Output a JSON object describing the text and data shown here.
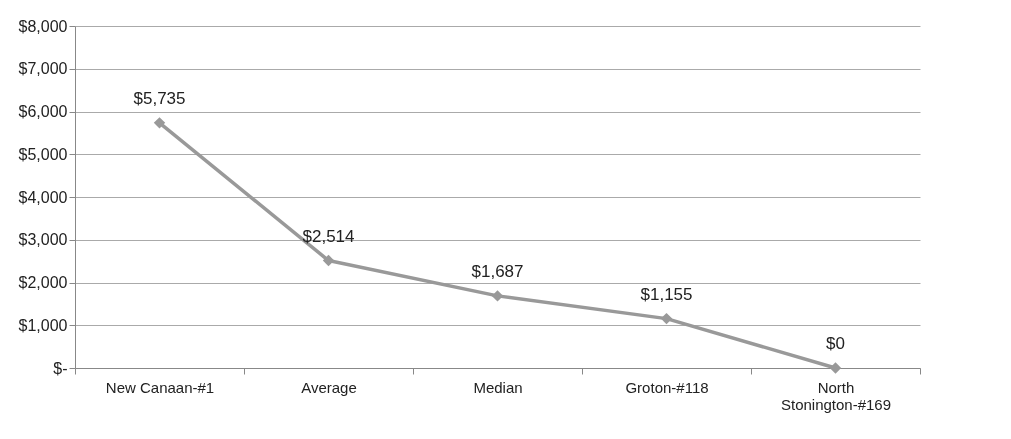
{
  "chart_data": {
    "type": "line",
    "categories": [
      "New Canaan-#1",
      "Average",
      "Median",
      "Groton-#118",
      "North Stonington-#169"
    ],
    "values": [
      5735,
      2514,
      1687,
      1155,
      0
    ],
    "value_labels": [
      "$5,735",
      "$2,514",
      "$1,687",
      "$1,155",
      "$0"
    ],
    "color": "#999999",
    "marker": "diamond",
    "line_style": "solid",
    "grid": "y",
    "ylim": [
      0,
      8000
    ],
    "yticks": [
      {
        "value": 0,
        "label": "$-"
      },
      {
        "value": 1000,
        "label": "$1,000"
      },
      {
        "value": 2000,
        "label": "$2,000"
      },
      {
        "value": 3000,
        "label": "$3,000"
      },
      {
        "value": 4000,
        "label": "$4,000"
      },
      {
        "value": 5000,
        "label": "$5,000"
      },
      {
        "value": 6000,
        "label": "$6,000"
      },
      {
        "value": 7000,
        "label": "$7,000"
      },
      {
        "value": 8000,
        "label": "$8,000"
      }
    ]
  }
}
